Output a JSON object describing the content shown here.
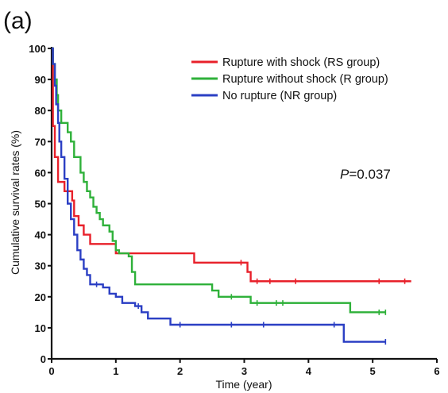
{
  "panel_label": "(a)",
  "chart_data": {
    "type": "line",
    "xlabel": "Time (year)",
    "ylabel": "Cumulative survival rates (%)",
    "xlim": [
      0,
      6
    ],
    "ylim": [
      0,
      100
    ],
    "xticks": [
      0,
      1,
      2,
      3,
      4,
      5,
      6
    ],
    "yticks": [
      0,
      10,
      20,
      30,
      40,
      50,
      60,
      70,
      80,
      90,
      100
    ],
    "grid": false,
    "legend_position": "top-right",
    "annotation": {
      "italic": "P",
      "rest": "=0.037"
    },
    "series": [
      {
        "name": "Rupture with shock (RS group)",
        "color": "#e8202a",
        "points": [
          [
            0,
            100
          ],
          [
            0.02,
            75
          ],
          [
            0.05,
            65
          ],
          [
            0.1,
            57
          ],
          [
            0.18,
            57
          ],
          [
            0.2,
            54
          ],
          [
            0.3,
            54
          ],
          [
            0.32,
            51
          ],
          [
            0.35,
            46
          ],
          [
            0.4,
            46
          ],
          [
            0.42,
            43
          ],
          [
            0.48,
            43
          ],
          [
            0.5,
            40
          ],
          [
            0.6,
            37
          ],
          [
            0.95,
            37
          ],
          [
            1.0,
            34
          ],
          [
            2.2,
            34
          ],
          [
            2.22,
            31
          ],
          [
            3.0,
            31
          ],
          [
            3.05,
            28
          ],
          [
            3.1,
            25
          ],
          [
            5.6,
            25
          ]
        ],
        "censors": [
          [
            2.95,
            31
          ],
          [
            3.2,
            25
          ],
          [
            3.4,
            25
          ],
          [
            3.8,
            25
          ],
          [
            5.1,
            25
          ],
          [
            5.5,
            25
          ]
        ]
      },
      {
        "name": "Rupture without shock (R group)",
        "color": "#2fb13a",
        "points": [
          [
            0,
            100
          ],
          [
            0.02,
            95
          ],
          [
            0.05,
            90
          ],
          [
            0.08,
            85
          ],
          [
            0.1,
            80
          ],
          [
            0.15,
            76
          ],
          [
            0.25,
            73
          ],
          [
            0.3,
            70
          ],
          [
            0.35,
            65
          ],
          [
            0.45,
            60
          ],
          [
            0.5,
            57
          ],
          [
            0.55,
            54
          ],
          [
            0.6,
            52
          ],
          [
            0.65,
            49
          ],
          [
            0.7,
            47
          ],
          [
            0.75,
            45
          ],
          [
            0.8,
            43
          ],
          [
            0.9,
            41
          ],
          [
            0.95,
            38
          ],
          [
            1.0,
            35
          ],
          [
            1.05,
            34
          ],
          [
            1.2,
            33
          ],
          [
            1.25,
            28
          ],
          [
            1.3,
            24
          ],
          [
            2.4,
            24
          ],
          [
            2.5,
            22
          ],
          [
            2.6,
            20
          ],
          [
            3.0,
            20
          ],
          [
            3.1,
            18
          ],
          [
            4.6,
            18
          ],
          [
            4.65,
            15
          ],
          [
            5.2,
            15
          ]
        ],
        "censors": [
          [
            2.8,
            20
          ],
          [
            3.2,
            18
          ],
          [
            3.5,
            18
          ],
          [
            3.6,
            18
          ],
          [
            5.1,
            15
          ],
          [
            5.2,
            15
          ]
        ]
      },
      {
        "name": "No rupture (NR group)",
        "color": "#2b3fc4",
        "points": [
          [
            0,
            100
          ],
          [
            0.02,
            95
          ],
          [
            0.05,
            88
          ],
          [
            0.07,
            82
          ],
          [
            0.1,
            76
          ],
          [
            0.12,
            70
          ],
          [
            0.15,
            65
          ],
          [
            0.2,
            58
          ],
          [
            0.25,
            50
          ],
          [
            0.3,
            45
          ],
          [
            0.35,
            40
          ],
          [
            0.4,
            35
          ],
          [
            0.45,
            32
          ],
          [
            0.5,
            29
          ],
          [
            0.55,
            27
          ],
          [
            0.6,
            24
          ],
          [
            0.75,
            24
          ],
          [
            0.8,
            23
          ],
          [
            0.9,
            21
          ],
          [
            1.0,
            20
          ],
          [
            1.1,
            18
          ],
          [
            1.3,
            17
          ],
          [
            1.4,
            15
          ],
          [
            1.5,
            13
          ],
          [
            1.8,
            13
          ],
          [
            1.85,
            11
          ],
          [
            4.5,
            11
          ],
          [
            4.55,
            5.5
          ],
          [
            5.2,
            5.5
          ]
        ],
        "censors": [
          [
            0.7,
            24
          ],
          [
            1.35,
            17
          ],
          [
            2.0,
            11
          ],
          [
            2.8,
            11
          ],
          [
            3.3,
            11
          ],
          [
            4.4,
            11
          ],
          [
            5.2,
            5.5
          ]
        ]
      }
    ]
  }
}
